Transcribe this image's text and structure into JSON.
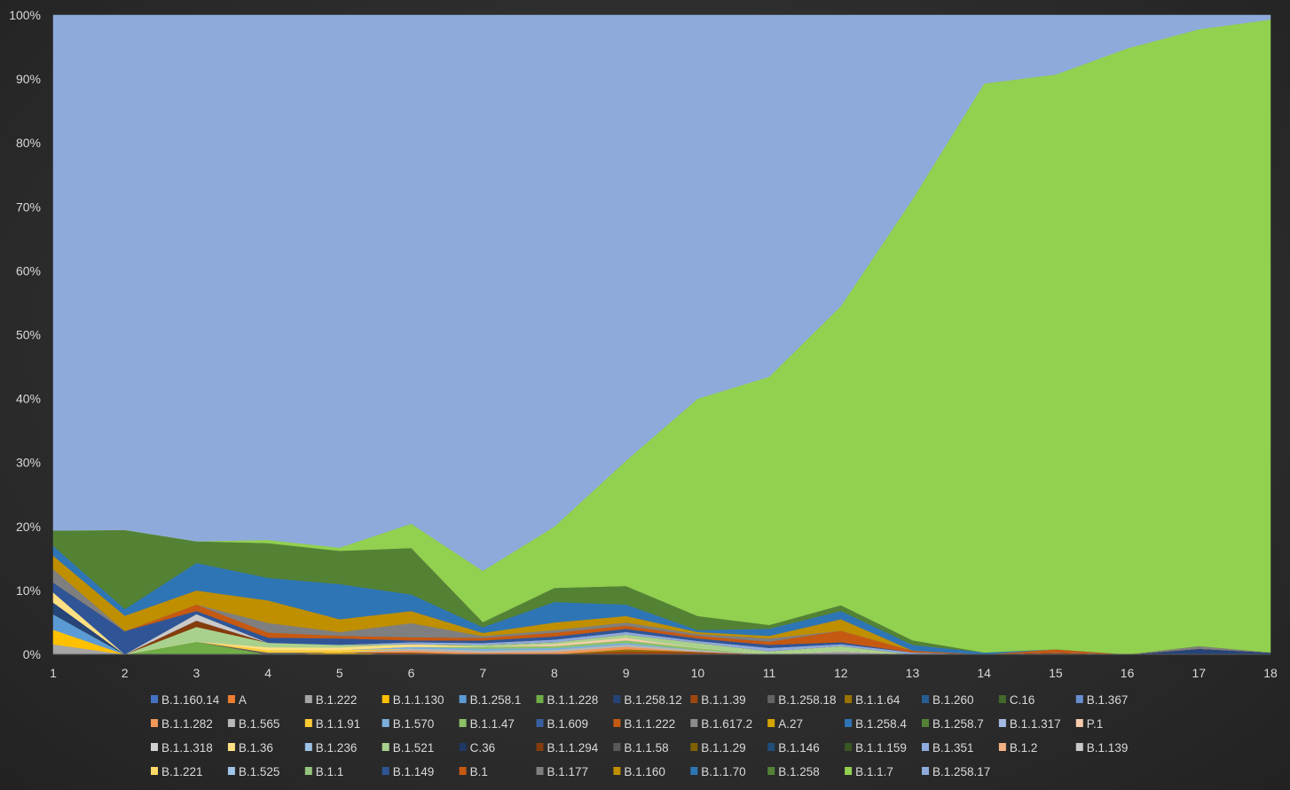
{
  "chart_data": {
    "type": "area",
    "stacked": true,
    "normalized": "100%",
    "x": [
      1,
      2,
      3,
      4,
      5,
      6,
      7,
      8,
      9,
      10,
      11,
      12,
      13,
      14,
      15,
      16,
      17,
      18
    ],
    "y_ticks": [
      "0%",
      "10%",
      "20%",
      "30%",
      "40%",
      "50%",
      "60%",
      "70%",
      "80%",
      "90%",
      "100%"
    ],
    "ylim": [
      0,
      100
    ],
    "grid": false,
    "legend_position": "bottom",
    "series": [
      {
        "name": "B.1.160.14",
        "color": "#4472c4",
        "values": [
          0,
          0,
          0,
          0,
          0,
          0,
          0,
          0,
          0,
          0,
          0,
          0,
          0,
          0,
          0,
          0,
          0,
          0
        ]
      },
      {
        "name": "A",
        "color": "#ed7d31",
        "values": [
          0,
          0,
          0,
          0,
          0,
          0,
          0,
          0,
          0,
          0,
          0,
          0,
          0,
          0,
          0,
          0,
          0,
          0
        ]
      },
      {
        "name": "B.1.222",
        "color": "#a5a5a5",
        "values": [
          1.5,
          0,
          0,
          0,
          0,
          0,
          0,
          0,
          0,
          0,
          0,
          0.5,
          0,
          0,
          0,
          0,
          0,
          0
        ]
      },
      {
        "name": "B.1.1.130",
        "color": "#ffc000",
        "values": [
          2.2,
          0,
          0,
          0,
          0.3,
          0,
          0,
          0,
          0,
          0,
          0,
          0,
          0,
          0,
          0,
          0,
          0,
          0
        ]
      },
      {
        "name": "B.1.258.1",
        "color": "#5b9bd5",
        "values": [
          2.3,
          0,
          0,
          0,
          0,
          0,
          0,
          0,
          0,
          0,
          0,
          0,
          0,
          0,
          0,
          0,
          0,
          0
        ]
      },
      {
        "name": "B.1.1.228",
        "color": "#70ad47",
        "values": [
          0,
          0,
          2.0,
          0,
          0,
          0,
          0,
          0,
          0,
          0,
          0,
          0,
          0,
          0,
          0,
          0,
          0,
          0
        ]
      },
      {
        "name": "B.1.258.12",
        "color": "#264478",
        "values": [
          1.8,
          0,
          0,
          0,
          0,
          0,
          0,
          0,
          0,
          0,
          0,
          0,
          0,
          0,
          0,
          0,
          0.9,
          0.3
        ]
      },
      {
        "name": "B.1.1.39",
        "color": "#9e480e",
        "values": [
          0,
          0,
          0,
          0,
          0,
          0.3,
          0,
          0,
          0.5,
          0.4,
          0,
          0,
          0,
          0,
          0.3,
          0,
          0,
          0
        ]
      },
      {
        "name": "B.1.258.18",
        "color": "#636363",
        "values": [
          0,
          0,
          0,
          0.3,
          0,
          0,
          0,
          0,
          0,
          0,
          0,
          0,
          0,
          0,
          0,
          0,
          0,
          0
        ]
      },
      {
        "name": "B.1.1.64",
        "color": "#997300",
        "values": [
          0,
          0,
          0,
          0,
          0,
          0,
          0,
          0,
          0.3,
          0,
          0,
          0,
          0,
          0,
          0,
          0,
          0,
          0
        ]
      },
      {
        "name": "B.1.260",
        "color": "#255e91",
        "values": [
          0,
          0,
          0,
          0,
          0,
          0,
          0,
          0,
          0,
          0,
          0,
          0,
          0,
          0,
          0,
          0,
          0,
          0
        ]
      },
      {
        "name": "C.16",
        "color": "#43682b",
        "values": [
          0,
          0,
          0,
          0,
          0,
          0,
          0,
          0,
          0,
          0,
          0,
          0,
          0,
          0,
          0,
          0,
          0,
          0
        ]
      },
      {
        "name": "B.1.367",
        "color": "#698ed0",
        "values": [
          0,
          0,
          0,
          0,
          0,
          0,
          0,
          0,
          0,
          0,
          0,
          0,
          0,
          0,
          0,
          0,
          0,
          0
        ]
      },
      {
        "name": "B.1.1.282",
        "color": "#f1975a",
        "values": [
          0,
          0,
          0,
          0,
          0,
          0.3,
          0.3,
          0.4,
          0.4,
          0,
          0,
          0,
          0,
          0,
          0,
          0,
          0,
          0
        ]
      },
      {
        "name": "B.1.565",
        "color": "#b7b7b7",
        "values": [
          0,
          0,
          0,
          0,
          0,
          0.3,
          0.3,
          0.3,
          0.3,
          0.3,
          0,
          0,
          0,
          0,
          0,
          0,
          0,
          0
        ]
      },
      {
        "name": "B.1.1.91",
        "color": "#ffcd33",
        "values": [
          0,
          0,
          0,
          0.4,
          0.4,
          0,
          0,
          0,
          0,
          0,
          0,
          0,
          0,
          0,
          0,
          0,
          0,
          0
        ]
      },
      {
        "name": "B.1.570",
        "color": "#7cafdd",
        "values": [
          0,
          0,
          0,
          0,
          0,
          0.3,
          0.3,
          0.3,
          0.3,
          0,
          0,
          0,
          0,
          0,
          0,
          0,
          0,
          0
        ]
      },
      {
        "name": "B.1.1.47",
        "color": "#8cc168",
        "values": [
          0,
          0,
          0,
          0,
          0,
          0,
          0.3,
          0.3,
          0.4,
          0.3,
          0,
          0,
          0,
          0,
          0,
          0,
          0,
          0
        ]
      },
      {
        "name": "B.1.609",
        "color": "#3a5fa0",
        "values": [
          0,
          0,
          0,
          0,
          0,
          0,
          0,
          0,
          0,
          0,
          0,
          0,
          0,
          0,
          0,
          0,
          0,
          0
        ]
      },
      {
        "name": "B.1.1.222",
        "color": "#c55a11",
        "values": [
          0,
          0,
          0,
          0,
          0,
          0,
          0,
          0,
          0,
          0,
          0,
          0,
          0,
          0,
          0,
          0,
          0,
          0
        ]
      },
      {
        "name": "B.1.617.2",
        "color": "#8c8c8c",
        "values": [
          0,
          0,
          0,
          0,
          0,
          0,
          0,
          0,
          0,
          0,
          0,
          0,
          0,
          0,
          0,
          0,
          0,
          0
        ]
      },
      {
        "name": "A.27",
        "color": "#d4a500",
        "values": [
          0,
          0,
          0,
          0,
          0,
          0,
          0,
          0,
          0,
          0,
          0,
          0,
          0,
          0,
          0,
          0,
          0,
          0
        ]
      },
      {
        "name": "B.1.258.4",
        "color": "#2e75b6",
        "values": [
          0,
          0,
          0,
          0,
          0,
          0,
          0,
          0,
          0,
          0,
          0,
          0,
          0,
          0,
          0,
          0,
          0,
          0
        ]
      },
      {
        "name": "B.1.258.7",
        "color": "#548235",
        "values": [
          0,
          0,
          0,
          0,
          0,
          0,
          0,
          0,
          0,
          0,
          0,
          0,
          0,
          0,
          0,
          0,
          0,
          0
        ]
      },
      {
        "name": "B.1.1.317",
        "color": "#a3bbe4",
        "values": [
          0,
          0,
          0,
          0,
          0,
          0,
          0,
          0,
          0,
          0,
          0,
          0,
          0,
          0,
          0,
          0,
          0,
          0
        ]
      },
      {
        "name": "P.1",
        "color": "#f8cbad",
        "values": [
          0,
          0,
          0,
          0,
          0,
          0,
          0,
          0.3,
          0.4,
          0,
          0,
          0,
          0,
          0,
          0,
          0,
          0,
          0
        ]
      },
      {
        "name": "B.1.1.318",
        "color": "#d0d0d0",
        "values": [
          0,
          0,
          0,
          0,
          0,
          0,
          0,
          0,
          0,
          0,
          0,
          0,
          0,
          0,
          0,
          0,
          0,
          0
        ]
      },
      {
        "name": "B.1.36",
        "color": "#ffe082",
        "values": [
          1.5,
          0,
          0,
          0.4,
          0.4,
          0.4,
          0,
          0,
          0,
          0,
          0,
          0,
          0,
          0,
          0,
          0,
          0,
          0
        ]
      },
      {
        "name": "B.1.236",
        "color": "#9dc3e6",
        "values": [
          0,
          0,
          0,
          0,
          0,
          0,
          0,
          0,
          0,
          0,
          0,
          0,
          0,
          0,
          0,
          0,
          0,
          0
        ]
      },
      {
        "name": "B.1.521",
        "color": "#a9d18e",
        "values": [
          0,
          0,
          2.3,
          0.7,
          0.4,
          0,
          0.3,
          0.3,
          0.5,
          0.8,
          0.5,
          0.8,
          0,
          0,
          0,
          0,
          0,
          0
        ]
      },
      {
        "name": "C.36",
        "color": "#1f3864",
        "values": [
          0,
          0,
          0,
          0,
          0,
          0,
          0,
          0,
          0,
          0,
          0,
          0,
          0,
          0,
          0,
          0,
          0,
          0
        ]
      },
      {
        "name": "B.1.1.294",
        "color": "#843c0c",
        "values": [
          0,
          0,
          1.0,
          0,
          0,
          0,
          0,
          0,
          0,
          0,
          0,
          0,
          0,
          0,
          0,
          0,
          0,
          0
        ]
      },
      {
        "name": "B.1.1.58",
        "color": "#595959",
        "values": [
          0,
          0,
          0,
          0,
          0,
          0,
          0,
          0,
          0,
          0,
          0,
          0,
          0,
          0,
          0,
          0,
          0,
          0
        ]
      },
      {
        "name": "B.1.1.29",
        "color": "#806000",
        "values": [
          0,
          0,
          0,
          0,
          0,
          0,
          0,
          0,
          0,
          0,
          0,
          0,
          0,
          0,
          0,
          0,
          0,
          0
        ]
      },
      {
        "name": "B.1.146",
        "color": "#1f4e79",
        "values": [
          0,
          0,
          0,
          0,
          0,
          0,
          0,
          0,
          0,
          0,
          0,
          0,
          0,
          0,
          0,
          0,
          0,
          0
        ]
      },
      {
        "name": "B.1.1.159",
        "color": "#385723",
        "values": [
          0,
          0,
          0,
          0,
          0,
          0,
          0,
          0,
          0,
          0,
          0,
          0,
          0,
          0,
          0,
          0,
          0,
          0
        ]
      },
      {
        "name": "B.1.351",
        "color": "#8faadc",
        "values": [
          0,
          0,
          0,
          0,
          0,
          0.3,
          0.3,
          0.4,
          0.4,
          0.3,
          0.5,
          0.3,
          0.3,
          0,
          0,
          0,
          0,
          0
        ]
      },
      {
        "name": "B.1.2",
        "color": "#f4b183",
        "values": [
          0,
          0,
          0,
          0,
          0,
          0,
          0,
          0,
          0,
          0,
          0,
          0,
          0,
          0,
          0,
          0,
          0,
          0
        ]
      },
      {
        "name": "B.1.139",
        "color": "#c9c9c9",
        "values": [
          0,
          0,
          1.0,
          0,
          0,
          0,
          0,
          0,
          0,
          0,
          0,
          0,
          0,
          0,
          0,
          0,
          0,
          0
        ]
      },
      {
        "name": "B.1.221",
        "color": "#ffd966",
        "values": [
          0,
          0,
          0,
          0,
          0,
          0,
          0,
          0,
          0,
          0,
          0,
          0,
          0,
          0,
          0,
          0,
          0,
          0
        ]
      },
      {
        "name": "B.1.525",
        "color": "#9fc5e8",
        "values": [
          0,
          0,
          0,
          0,
          0,
          0,
          0,
          0,
          0,
          0,
          0,
          0,
          0,
          0,
          0,
          0,
          0,
          0
        ]
      },
      {
        "name": "B.1.1",
        "color": "#93c47d",
        "values": [
          0,
          0,
          0,
          0,
          0,
          0,
          0,
          0,
          0,
          0,
          0,
          0,
          0,
          0,
          0,
          0,
          0,
          0
        ]
      },
      {
        "name": "B.1.149",
        "color": "#2f5597",
        "values": [
          1.5,
          3.5,
          0.5,
          0.8,
          1.0,
          0.3,
          0.4,
          0.5,
          0.5,
          0.4,
          0.5,
          0.3,
          0,
          0,
          0,
          0,
          0,
          0
        ]
      },
      {
        "name": "B.1",
        "color": "#c65911",
        "values": [
          0,
          0,
          1.0,
          0.8,
          0.4,
          0.5,
          0.4,
          0.6,
          0.5,
          0.4,
          0.5,
          1.8,
          0.3,
          0,
          0.5,
          0,
          0,
          0
        ]
      },
      {
        "name": "B.1.177",
        "color": "#7f7f7f",
        "values": [
          2.0,
          0,
          0,
          1.5,
          0.6,
          2.2,
          0.3,
          0.4,
          0.5,
          0.3,
          0.5,
          0,
          0,
          0,
          0,
          0,
          0.4,
          0
        ]
      },
      {
        "name": "B.1.160",
        "color": "#bf8f00",
        "values": [
          2.0,
          2.3,
          2.2,
          3.5,
          2.0,
          1.9,
          0.5,
          1.2,
          1.0,
          0.3,
          0.4,
          1.8,
          0,
          0,
          0,
          0,
          0,
          0
        ]
      },
      {
        "name": "B.1.1.70",
        "color": "#2e75b6",
        "values": [
          1.5,
          1.0,
          4.3,
          3.5,
          5.5,
          2.6,
          0.9,
          3.2,
          1.8,
          0.3,
          1.1,
          1.3,
          0.9,
          0.3,
          0,
          0,
          0,
          0
        ]
      },
      {
        "name": "B.1.258",
        "color": "#548235",
        "values": [
          2.3,
          11.9,
          3.4,
          5.4,
          5.2,
          7.3,
          0.8,
          2.2,
          2.9,
          2.2,
          0.6,
          0.9,
          0.7,
          0,
          0,
          0,
          0,
          0
        ]
      },
      {
        "name": "B.1.1.7",
        "color": "#92d050",
        "values": [
          0,
          0,
          0,
          0.5,
          0.5,
          3.8,
          8.1,
          9.6,
          19.6,
          34.0,
          38.8,
          46.8,
          69.0,
          89.0,
          89.0,
          94.8,
          96.5,
          99.0
        ]
      },
      {
        "name": "B.1.258.17",
        "color": "#8eaadb",
        "values": [
          77.4,
          77.3,
          82.3,
          81.6,
          83.3,
          79.8,
          87.8,
          80.0,
          69.7,
          60.0,
          56.5,
          45.5,
          28.8,
          10.7,
          9.2,
          5.2,
          2.2,
          0.7
        ]
      }
    ]
  }
}
